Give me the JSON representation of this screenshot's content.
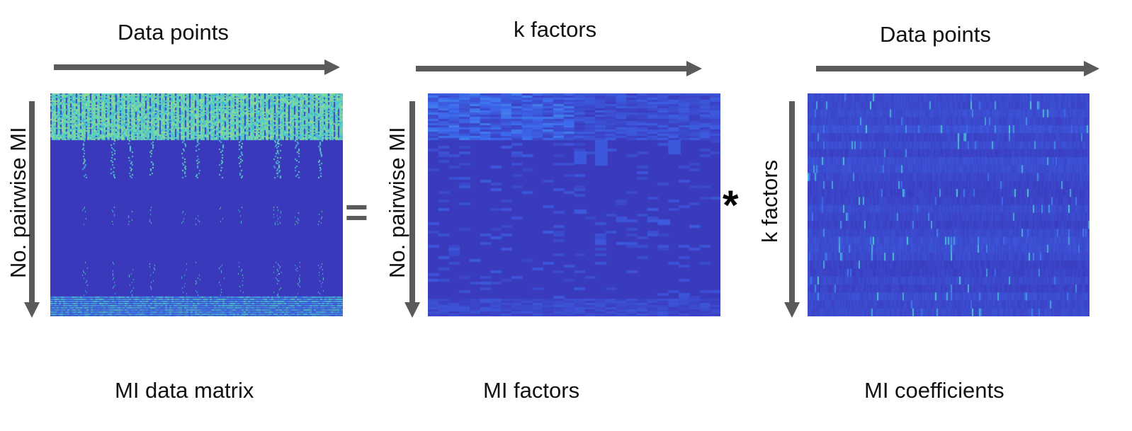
{
  "colors": {
    "arrow": "#5a5a5a",
    "low": "#3a35b8",
    "mid": "#3d6cf0",
    "high": "#4fd0c9",
    "peak": "#b8e36a"
  },
  "panels": [
    {
      "id": "data-matrix",
      "top_label": "Data points",
      "side_label": "No. pairwise MI",
      "caption": "MI data matrix"
    },
    {
      "id": "factors",
      "top_label": "k factors",
      "side_label": "No. pairwise MI",
      "caption": "MI factors"
    },
    {
      "id": "coefficients",
      "top_label": "Data points",
      "side_label": "k factors",
      "caption": "MI coefficients"
    }
  ],
  "operators": {
    "equals": "=",
    "multiply": "*"
  }
}
